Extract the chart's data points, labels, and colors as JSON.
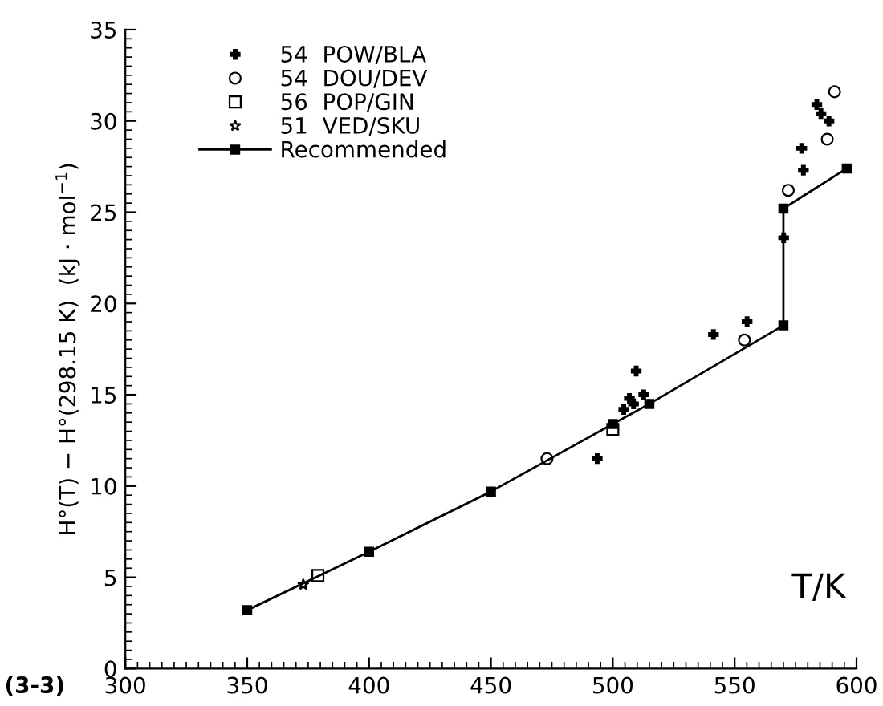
{
  "chart_data": {
    "type": "scatter",
    "xlabel": "T/K",
    "ylabel": "H°(T) − H°(298.15 K)  (kJ · mol$^{−1}$)",
    "annotations": [
      "(3-3)"
    ],
    "series": [
      {
        "name": "54  POW/BLA",
        "color": "#000000",
        "marker": "cross",
        "x": [
          493.6,
          504.5,
          506.8,
          508.5,
          509.6,
          512.7,
          541.3,
          555.1,
          570.1,
          577.5,
          578.2,
          583.7,
          585.4,
          588.7
        ],
        "values": [
          11.5,
          14.2,
          14.8,
          14.5,
          16.3,
          15.0,
          18.3,
          19.0,
          23.6,
          28.5,
          27.3,
          30.9,
          30.4,
          30.0
        ]
      },
      {
        "name": "54  DOU/DEV",
        "color": "#000000",
        "marker": "circle",
        "x": [
          473,
          554,
          572,
          588,
          591
        ],
        "values": [
          11.5,
          18.0,
          26.2,
          29.0,
          31.6
        ]
      },
      {
        "name": "56  POP/GIN",
        "color": "#000000",
        "marker": "square",
        "x": [
          379,
          500
        ],
        "values": [
          5.1,
          13.1
        ]
      },
      {
        "name": "51  VED/SKU",
        "color": "#000000",
        "marker": "star",
        "x": [
          373
        ],
        "values": [
          4.6
        ]
      },
      {
        "name": "Recommended",
        "type": "line",
        "color": "#000000",
        "marker": "square",
        "line_style": "solid",
        "x": [
          350,
          400,
          450,
          500,
          515,
          570,
          570,
          596
        ],
        "values": [
          3.2,
          6.4,
          9.7,
          13.4,
          14.5,
          18.8,
          25.2,
          27.4
        ]
      }
    ],
    "xlim": [
      300,
      600
    ],
    "xticks": [
      300,
      350,
      400,
      450,
      500,
      550,
      600
    ],
    "ylim": [
      0,
      35
    ],
    "yticks": [
      0,
      5,
      10,
      15,
      20,
      25,
      30,
      35
    ],
    "grid": false,
    "legend": "top left"
  }
}
